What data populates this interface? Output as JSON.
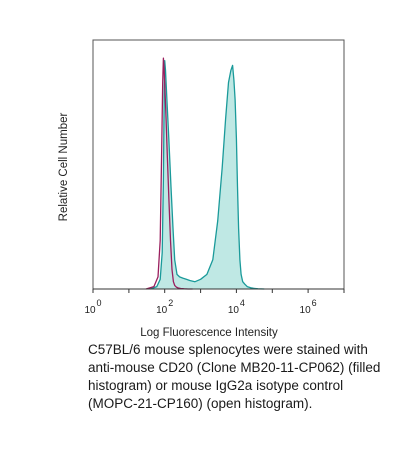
{
  "chart_data": {
    "type": "area",
    "xscale": "log",
    "xlim": [
      1,
      10000000
    ],
    "ylim": [
      0,
      1.0
    ],
    "xlabel": "Log Fluorescence Intensity",
    "ylabel": "Relative Cell Number",
    "xticks": [
      {
        "base": "10",
        "exp": "0",
        "value": 1
      },
      {
        "base": "10",
        "exp": "2",
        "value": 100
      },
      {
        "base": "10",
        "exp": "4",
        "value": 10000
      },
      {
        "base": "10",
        "exp": "6",
        "value": 1000000
      }
    ],
    "grid": false,
    "legend": "none",
    "series": [
      {
        "role": "filled",
        "fill": "#bfe8e4",
        "stroke": "#1a9a9a",
        "x": [
          40,
          60,
          75,
          85,
          92,
          97,
          100,
          105,
          115,
          130,
          150,
          170,
          190,
          220,
          260,
          320,
          400,
          500,
          700,
          1000,
          1500,
          2200,
          3000,
          4000,
          5000,
          6000,
          7000,
          7800,
          8500,
          9200,
          10000,
          10700,
          11500,
          12500,
          13500,
          15000,
          17000,
          20000,
          25000,
          30000,
          40000,
          60000
        ],
        "y": [
          0,
          0.01,
          0.04,
          0.15,
          0.45,
          0.8,
          0.94,
          0.9,
          0.78,
          0.62,
          0.42,
          0.25,
          0.12,
          0.06,
          0.05,
          0.045,
          0.04,
          0.035,
          0.03,
          0.04,
          0.06,
          0.12,
          0.28,
          0.5,
          0.7,
          0.85,
          0.9,
          0.92,
          0.86,
          0.78,
          0.62,
          0.42,
          0.25,
          0.12,
          0.06,
          0.03,
          0.02,
          0.01,
          0.005,
          0.003,
          0.001,
          0
        ]
      },
      {
        "role": "open",
        "fill": "none",
        "stroke": "#9a1f5e",
        "x": [
          30,
          50,
          65,
          75,
          82,
          88,
          92,
          95,
          100,
          108,
          118,
          130,
          145,
          160,
          175,
          190,
          210,
          240,
          280,
          350,
          450,
          600
        ],
        "y": [
          0,
          0.01,
          0.05,
          0.2,
          0.55,
          0.85,
          0.95,
          0.92,
          0.85,
          0.72,
          0.55,
          0.38,
          0.2,
          0.08,
          0.03,
          0.015,
          0.008,
          0.004,
          0.002,
          0.001,
          0,
          0
        ]
      }
    ]
  },
  "caption": "C57BL/6 mouse splenocytes were stained with anti-mouse CD20 (Clone MB20-11-CP062) (filled histogram) or mouse IgG2a isotype control (MOPC-21-CP160) (open histogram)."
}
